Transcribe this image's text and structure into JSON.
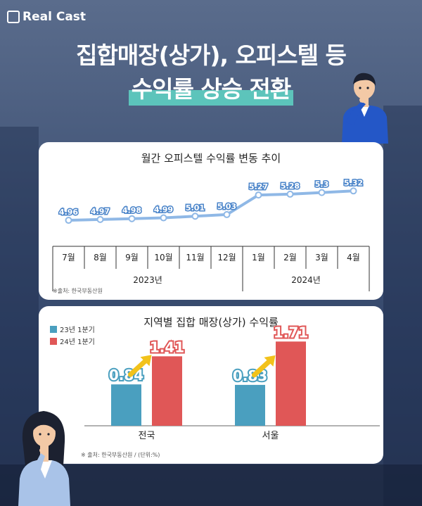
{
  "brand": {
    "logo_text": "Real Cast"
  },
  "headline": {
    "line1": "집합매장(상가), 오피스텔 등",
    "line2": "수익률 상승 전환"
  },
  "colors": {
    "line": "#8fb8e6",
    "bar_2023": "#4a9fbf",
    "bar_2024": "#e05757",
    "arrow": "#f2c21b",
    "highlight": "#5fd6c6"
  },
  "chart_data": [
    {
      "type": "line",
      "title": "월간 오피스텔 수익률 변동 추이",
      "categories": [
        "7월",
        "8월",
        "9월",
        "10월",
        "11월",
        "12월",
        "1월",
        "2월",
        "3월",
        "4월"
      ],
      "values": [
        4.96,
        4.97,
        4.98,
        4.99,
        5.01,
        5.03,
        5.27,
        5.28,
        5.3,
        5.32
      ],
      "value_labels": [
        "4.96",
        "4.97",
        "4.98",
        "4.99",
        "5.01",
        "5.03",
        "5.27",
        "5.28",
        "5.3",
        "5.32"
      ],
      "year_groups": [
        {
          "label": "2023년",
          "count": 6
        },
        {
          "label": "2024년",
          "count": 4
        }
      ],
      "ylim": [
        4.9,
        5.4
      ],
      "source": "※출처: 한국부동산원"
    },
    {
      "type": "bar",
      "title": "지역별 집합 매장(상가) 수익률",
      "categories": [
        "전국",
        "서울"
      ],
      "series": [
        {
          "name": "23년 1분기",
          "values": [
            0.84,
            0.83
          ],
          "labels": [
            "0.84",
            "0.83"
          ]
        },
        {
          "name": "24년 1분기",
          "values": [
            1.41,
            1.71
          ],
          "labels": [
            "1.41",
            "1.71"
          ]
        }
      ],
      "ylim": [
        0,
        2.0
      ],
      "legend": "top-left",
      "source": "※ 출처: 한국부동산원 / (단위:%)"
    }
  ]
}
